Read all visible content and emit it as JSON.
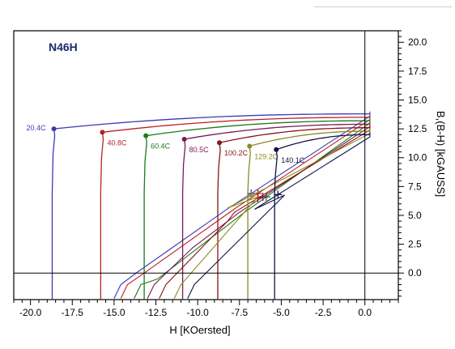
{
  "chart_data": {
    "type": "line",
    "title": "N46H",
    "xlabel": "H [KOersted]",
    "ylabel": "B,(B-H) [kGAUSS]",
    "xlim": [
      -21,
      2
    ],
    "ylim": [
      -2.3,
      21
    ],
    "x_ticks": [
      "-20.0",
      "-17.5",
      "-15.0",
      "-12.5",
      "-10.0",
      "-7.5",
      "-5.0",
      "-2.5",
      "0.0"
    ],
    "x_tick_values": [
      -20,
      -17.5,
      -15,
      -12.5,
      -10,
      -7.5,
      -5,
      -2.5,
      0
    ],
    "y_ticks": [
      "0.0",
      "2.5",
      "5.0",
      "7.5",
      "10.0",
      "12.5",
      "15.0",
      "17.5",
      "20.0"
    ],
    "y_tick_values": [
      0,
      2.5,
      5,
      7.5,
      10,
      12.5,
      15,
      17.5,
      20
    ],
    "grid": false,
    "series": [
      {
        "name": "20.4C",
        "color": "#3a3ab8",
        "br": 13.8,
        "hcj": -18.7,
        "knee": [
          -18.6,
          12.5
        ],
        "bh_end": [
          -15.0,
          -2.2
        ],
        "marker": [
          -6.8,
          6.9
        ]
      },
      {
        "name": "40.8C",
        "color": "#b82222",
        "br": 13.5,
        "hcj": -15.8,
        "knee": [
          -15.7,
          12.2
        ],
        "bh_end": [
          -14.6,
          -2.2
        ],
        "marker": [
          -6.4,
          6.9
        ]
      },
      {
        "name": "60.4C",
        "color": "#1c7a1c",
        "br": 13.2,
        "hcj": -13.2,
        "knee": [
          -13.1,
          11.9
        ],
        "bh_end": [
          -13.8,
          -2.2
        ],
        "marker": [
          -5.9,
          6.6
        ]
      },
      {
        "name": "80.5C",
        "color": "#7a1a55",
        "br": 12.9,
        "hcj": -10.9,
        "knee": [
          -10.8,
          11.6
        ],
        "bh_end": [
          -13.0,
          -2.2
        ],
        "marker": [
          -6.1,
          6.6
        ]
      },
      {
        "name": "100.2C",
        "color": "#8a1414",
        "br": 12.6,
        "hcj": -8.8,
        "knee": [
          -8.7,
          11.3
        ],
        "bh_end": [
          -12.3,
          -2.2
        ],
        "marker": [
          -6.4,
          6.5
        ]
      },
      {
        "name": "129.2C",
        "color": "#8a8a22",
        "br": 12.3,
        "hcj": -7.0,
        "knee": [
          -6.9,
          11.0
        ],
        "bh_end": [
          -11.4,
          -2.2
        ],
        "marker": [
          -6.8,
          6.7
        ]
      },
      {
        "name": "140.1C",
        "color": "#12124a",
        "br": 12.0,
        "hcj": -5.4,
        "knee": [
          -5.3,
          10.7
        ],
        "bh_end": [
          -10.6,
          -2.2
        ],
        "marker": [
          -5.2,
          6.8
        ]
      }
    ]
  }
}
